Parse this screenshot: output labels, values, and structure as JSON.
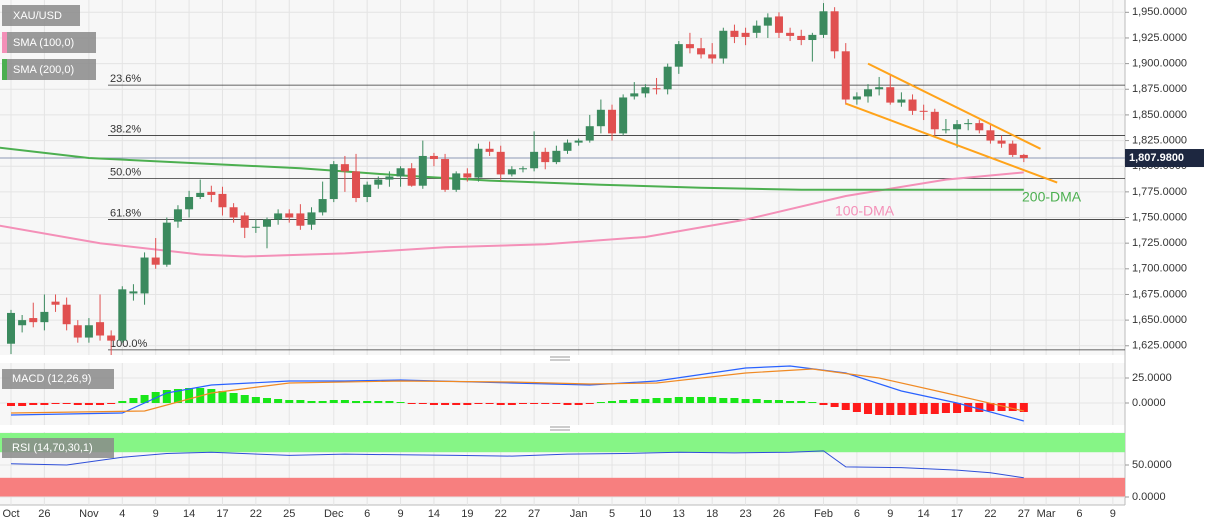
{
  "chart_data": [
    {
      "type": "candlestick",
      "title": "XAU/USD",
      "categories": [
        "Oct",
        null,
        null,
        "26",
        null,
        null,
        null,
        "Nov",
        null,
        null,
        "4",
        null,
        null,
        "9",
        null,
        null,
        "14",
        null,
        null,
        "17",
        null,
        null,
        "22",
        null,
        null,
        "25",
        null,
        null,
        null,
        "Dec",
        null,
        null,
        "6",
        null,
        null,
        "9",
        null,
        null,
        "14",
        null,
        null,
        "19",
        null,
        null,
        "22",
        null,
        null,
        "27",
        null,
        null,
        null,
        "Jan",
        null,
        null,
        "5",
        null,
        null,
        "10",
        null,
        null,
        "13",
        null,
        null,
        "18",
        null,
        null,
        "23",
        null,
        null,
        "26",
        null,
        null,
        null,
        "Feb",
        null,
        null,
        "6",
        null,
        null,
        "9",
        null,
        null,
        "14",
        null,
        null,
        "17",
        null,
        null,
        "22",
        null,
        null,
        "27",
        null,
        "Mar",
        null,
        null,
        "6",
        null,
        null,
        "9"
      ],
      "open": [
        1627,
        1645,
        1652,
        1648,
        1668,
        1665,
        1645,
        1633,
        1648,
        1635,
        1630,
        1676,
        1676,
        1711,
        1704,
        1746,
        1758,
        1770,
        1775,
        1773,
        1760,
        1752,
        1740,
        1741,
        1748,
        1754,
        1754,
        1743,
        1755,
        1768,
        1802,
        1795,
        1770,
        1782,
        1787,
        1790,
        1798,
        1781,
        1810,
        1807,
        1777,
        1793,
        1789,
        1817,
        1814,
        1792,
        1797,
        1798,
        1814,
        1804,
        1815,
        1823,
        1825,
        1839,
        1855,
        1832,
        1868,
        1871,
        1876,
        1875,
        1897,
        1919,
        1915,
        1909,
        1905,
        1932,
        1930,
        1930,
        1937,
        1946,
        1930,
        1927,
        1923,
        1928,
        1951,
        1912,
        1865,
        1868,
        1875,
        1877,
        1862,
        1865,
        1854,
        1853,
        1836,
        1836,
        1841,
        1842,
        1835,
        1825,
        1822,
        1811,
        null,
        null,
        null,
        null,
        null,
        null,
        null,
        null
      ],
      "high": [
        1660,
        1655,
        1667,
        1675,
        1675,
        1672,
        1650,
        1652,
        1675,
        1640,
        1683,
        1685,
        1716,
        1730,
        1750,
        1762,
        1776,
        1787,
        1781,
        1780,
        1764,
        1755,
        1748,
        1750,
        1758,
        1758,
        1763,
        1760,
        1785,
        1805,
        1810,
        1812,
        1785,
        1790,
        1795,
        1800,
        1803,
        1825,
        1813,
        1812,
        1795,
        1798,
        1822,
        1824,
        1820,
        1800,
        1800,
        1834,
        1818,
        1820,
        1826,
        1827,
        1850,
        1865,
        1860,
        1870,
        1882,
        1880,
        1886,
        1900,
        1922,
        1930,
        1925,
        1920,
        1935,
        1938,
        1935,
        1942,
        1949,
        1950,
        1935,
        1933,
        1930,
        1959,
        1955,
        1920,
        1872,
        1880,
        1887,
        1890,
        1872,
        1870,
        1860,
        1856,
        1846,
        1845,
        1846,
        1845,
        1840,
        1830,
        1825,
        1812,
        null,
        null,
        null,
        null,
        null,
        null,
        null,
        null
      ],
      "low": [
        1617,
        1638,
        1643,
        1640,
        1658,
        1640,
        1628,
        1628,
        1630,
        1616,
        1628,
        1669,
        1665,
        1700,
        1702,
        1740,
        1750,
        1768,
        1765,
        1752,
        1745,
        1730,
        1735,
        1720,
        1743,
        1745,
        1738,
        1738,
        1752,
        1765,
        1775,
        1765,
        1765,
        1778,
        1780,
        1780,
        1780,
        1778,
        1800,
        1775,
        1775,
        1785,
        1785,
        1810,
        1786,
        1790,
        1794,
        1795,
        1797,
        1802,
        1812,
        1820,
        1823,
        1832,
        1825,
        1830,
        1865,
        1867,
        1870,
        1870,
        1890,
        1910,
        1905,
        1900,
        1900,
        1920,
        1918,
        1925,
        1925,
        1925,
        1922,
        1918,
        1902,
        1925,
        1905,
        1860,
        1860,
        1862,
        1869,
        1860,
        1858,
        1850,
        1845,
        1830,
        1832,
        1818,
        1835,
        1832,
        1822,
        1818,
        1809,
        1804,
        null,
        null,
        null,
        null,
        null,
        null,
        null,
        null
      ],
      "close": [
        1657,
        1650,
        1648,
        1658,
        1665,
        1646,
        1633,
        1645,
        1635,
        1630,
        1680,
        1678,
        1711,
        1704,
        1745,
        1758,
        1770,
        1774,
        1772,
        1760,
        1750,
        1740,
        1741,
        1748,
        1754,
        1750,
        1742,
        1755,
        1768,
        1802,
        1795,
        1769,
        1782,
        1787,
        1790,
        1798,
        1781,
        1810,
        1807,
        1777,
        1793,
        1789,
        1817,
        1814,
        1792,
        1797,
        1798,
        1814,
        1804,
        1815,
        1823,
        1825,
        1839,
        1855,
        1832,
        1867,
        1871,
        1877,
        1875,
        1897,
        1919,
        1915,
        1909,
        1905,
        1932,
        1926,
        1926,
        1937,
        1945,
        1930,
        1927,
        1923,
        1928,
        1951,
        1912,
        1865,
        1868,
        1875,
        1877,
        1862,
        1865,
        1854,
        1853,
        1836,
        1836,
        1841,
        1842,
        1835,
        1825,
        1822,
        1811,
        1807.98,
        null,
        null,
        null,
        null,
        null,
        null,
        null,
        null
      ],
      "up_color": "#3b8a5e",
      "down_color": "#e05050",
      "ylim": [
        1616,
        1962
      ],
      "yticks": [
        {
          "value": 1625,
          "label": "1,625.0000"
        },
        {
          "value": 1650,
          "label": "1,650.0000"
        },
        {
          "value": 1675,
          "label": "1,675.0000"
        },
        {
          "value": 1700,
          "label": "1,700.0000"
        },
        {
          "value": 1725,
          "label": "1,725.0000"
        },
        {
          "value": 1750,
          "label": "1,750.0000"
        },
        {
          "value": 1775,
          "label": "1,775.0000"
        },
        {
          "value": 1800,
          "label": "1,800.0000"
        },
        {
          "value": 1825,
          "label": "1,825.0000"
        },
        {
          "value": 1850,
          "label": "1,850.0000"
        },
        {
          "value": 1875,
          "label": "1,875.0000"
        },
        {
          "value": 1900,
          "label": "1,900.0000"
        },
        {
          "value": 1925,
          "label": "1,925.0000"
        },
        {
          "value": 1950,
          "label": "1,950.0000"
        }
      ],
      "grid": true,
      "moving_averages": [
        {
          "name": "SMA (100,0)",
          "label": "100-DMA",
          "color": "#f490b8",
          "x": [
            -1,
            8,
            17,
            21,
            30,
            39,
            48,
            57,
            66,
            75,
            84,
            91
          ],
          "values": [
            1742,
            1725,
            1714,
            1712,
            1715,
            1721,
            1724,
            1731,
            1748,
            1771,
            1787,
            1794
          ]
        },
        {
          "name": "SMA (200,0)",
          "label": "200-DMA",
          "color": "#4caf50",
          "x": [
            -1,
            7,
            26,
            35,
            43,
            53,
            62,
            71,
            91
          ],
          "values": [
            1818,
            1808,
            1798,
            1791,
            1786,
            1782,
            1779,
            1777,
            1777
          ]
        }
      ],
      "fib_levels": [
        {
          "label": "23.6%",
          "value": 1879
        },
        {
          "label": "38.2%",
          "value": 1830
        },
        {
          "label": "50.0%",
          "value": 1788
        },
        {
          "label": "61.8%",
          "value": 1748
        },
        {
          "label": "100.0%",
          "value": 1621
        }
      ],
      "channel_color": "#ffa31a",
      "channel": [
        {
          "x": [
            77,
            92.5
          ],
          "values": [
            1900,
            1817
          ]
        },
        {
          "x": [
            75,
            94
          ],
          "values": [
            1861,
            1784
          ]
        }
      ],
      "last_price": {
        "value": 1807.98,
        "label": "1,807.9800"
      }
    },
    {
      "type": "macd",
      "title": "MACD (12,26,9)",
      "histogram": [
        -3,
        -3,
        -2,
        -2,
        -1,
        -1,
        -2,
        -2,
        -2,
        -1,
        2,
        5,
        8,
        11,
        13,
        14,
        15,
        15,
        14,
        12,
        10,
        8,
        6,
        5,
        4,
        3,
        3,
        2,
        2,
        3,
        3,
        2,
        2,
        2,
        2,
        1,
        -1,
        -1,
        -2,
        -2,
        -2,
        -2,
        -1,
        -1,
        -2,
        -2,
        -1,
        -1,
        -1,
        -1,
        -2,
        -2,
        -1,
        1,
        2,
        3,
        4,
        4,
        5,
        5,
        6,
        6,
        6,
        6,
        5,
        5,
        4,
        4,
        3,
        3,
        2,
        2,
        1,
        -2,
        -4,
        -7,
        -9,
        -11,
        -12,
        -12,
        -12,
        -12,
        -11,
        -11,
        -10,
        -10,
        -9,
        -9,
        -8,
        -8,
        -8,
        -9
      ],
      "positive_color": "#19e619",
      "negative_color": "#ff1a1a",
      "series": [
        {
          "color": "#2962ff",
          "x": [
            0,
            10,
            14,
            18,
            25,
            30,
            35,
            45,
            52,
            58,
            66,
            70,
            75,
            80,
            85,
            91
          ],
          "values": [
            -12,
            -10,
            10,
            18,
            22,
            22,
            23,
            20,
            18,
            22,
            35,
            37,
            30,
            12,
            0,
            -18
          ]
        },
        {
          "color": "#f08a24",
          "x": [
            0,
            12,
            18,
            25,
            35,
            45,
            52,
            58,
            66,
            72,
            78,
            84,
            91
          ],
          "values": [
            -10,
            -8,
            10,
            20,
            22,
            21,
            19,
            20,
            30,
            34,
            25,
            10,
            -8
          ]
        }
      ],
      "ylim": [
        -22,
        40
      ],
      "yticks": [
        {
          "value": 0,
          "label": "0.0000"
        },
        {
          "value": 25,
          "label": "25.0000"
        }
      ]
    },
    {
      "type": "rsi",
      "title": "RSI (14,70,30,1)",
      "bands": [
        {
          "from": 70,
          "to": 100,
          "color": "#86f586"
        },
        {
          "from": 0,
          "to": 30,
          "color": "#f77f7f"
        }
      ],
      "series": [
        {
          "color": "#2f4fd8",
          "x": [
            0,
            5,
            10,
            14,
            18,
            25,
            30,
            35,
            40,
            45,
            50,
            55,
            60,
            65,
            70,
            73,
            75,
            80,
            85,
            88,
            91
          ],
          "values": [
            52,
            50,
            62,
            68,
            70,
            65,
            67,
            66,
            65,
            64,
            67,
            68,
            70,
            69,
            70,
            72,
            47,
            46,
            42,
            38,
            30
          ]
        }
      ],
      "ylim": [
        -12.5,
        101.6
      ],
      "yticks": [
        {
          "value": 0,
          "label": "0.0000"
        },
        {
          "value": 50,
          "label": "50.0000"
        }
      ]
    }
  ]
}
